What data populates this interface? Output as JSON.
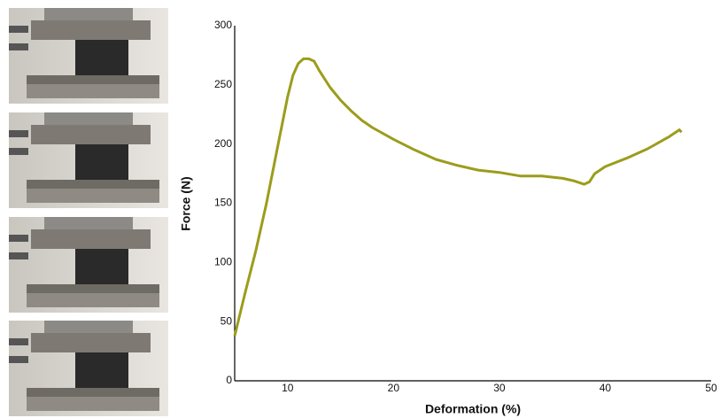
{
  "chart_data": {
    "type": "line",
    "x_label": "Deformation (%)",
    "y_label": "Force (N)",
    "x": [
      5,
      6,
      7,
      8,
      9,
      10,
      10.5,
      11,
      11.5,
      12,
      12.5,
      13,
      14,
      15,
      16,
      17,
      18,
      20,
      22,
      24,
      26,
      28,
      30,
      32,
      34,
      36,
      37,
      38,
      38.5,
      39,
      40,
      42,
      44,
      46,
      47,
      47.2
    ],
    "values": [
      38,
      75,
      110,
      150,
      195,
      240,
      258,
      268,
      272,
      272,
      270,
      262,
      248,
      237,
      228,
      220,
      214,
      204,
      195,
      187,
      182,
      178,
      176,
      173,
      173,
      171,
      169,
      166,
      168,
      175,
      181,
      188,
      196,
      206,
      212,
      210
    ],
    "color": "#9c9c1c",
    "xlim": [
      5,
      50
    ],
    "xticks": [
      10,
      20,
      30,
      40,
      50
    ],
    "ylim": [
      0,
      300
    ],
    "yticks": [
      0,
      50,
      100,
      150,
      200,
      250,
      300
    ],
    "grid": false
  }
}
